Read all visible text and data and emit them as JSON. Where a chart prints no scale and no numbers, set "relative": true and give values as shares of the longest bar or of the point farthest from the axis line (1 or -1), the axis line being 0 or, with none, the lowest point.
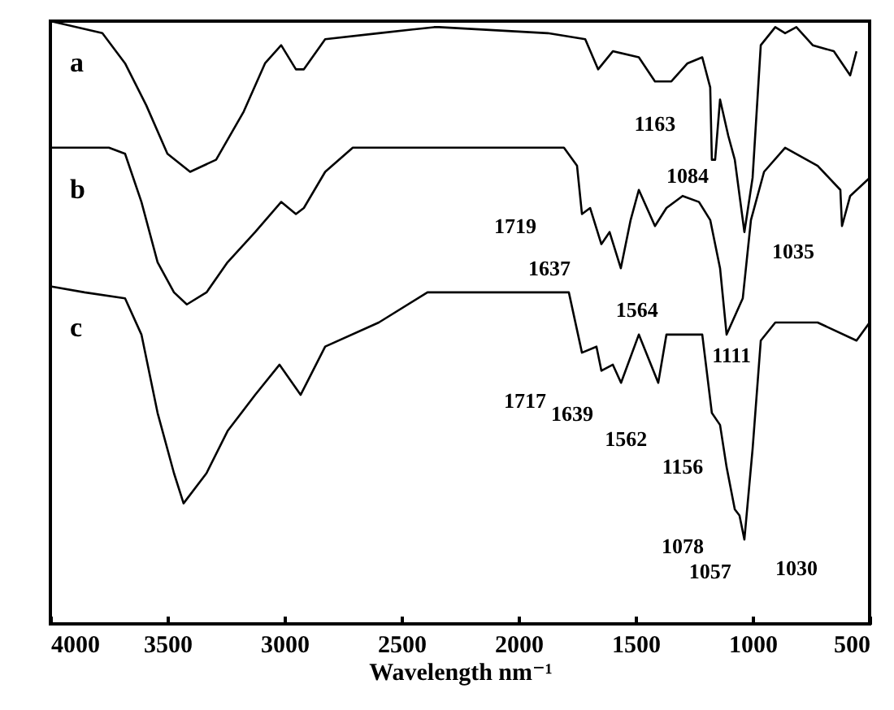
{
  "chart_data": {
    "type": "line",
    "xlabel": "Wavelength nm⁻¹",
    "xlim": [
      4000,
      500
    ],
    "xticks": [
      4000,
      3500,
      3000,
      2500,
      2000,
      1500,
      1000,
      500
    ],
    "relative": true,
    "tick_labels": "x",
    "marker": "none",
    "series": [
      {
        "name": "a",
        "color": "#000000",
        "x": [
          4000,
          3778,
          3681,
          3590,
          3500,
          3403,
          3292,
          3174,
          3083,
          3014,
          2951,
          2917,
          2826,
          2597,
          2361,
          2340,
          1875,
          1715,
          1660,
          1597,
          1486,
          1417,
          1347,
          1278,
          1215,
          1181,
          1174,
          1160,
          1139,
          1104,
          1076,
          1035,
          1000,
          965,
          903,
          861,
          813,
          743,
          653,
          583,
          556
        ],
        "values": [
          1.0,
          0.98,
          0.93,
          0.86,
          0.78,
          0.75,
          0.77,
          0.85,
          0.93,
          0.96,
          0.92,
          0.92,
          0.97,
          0.98,
          0.99,
          0.99,
          0.98,
          0.97,
          0.92,
          0.95,
          0.94,
          0.9,
          0.9,
          0.93,
          0.94,
          0.89,
          0.77,
          0.77,
          0.87,
          0.81,
          0.77,
          0.65,
          0.74,
          0.96,
          0.99,
          0.98,
          0.99,
          0.96,
          0.95,
          0.91,
          0.95
        ]
      },
      {
        "name": "b",
        "color": "#000000",
        "x": [
          4000,
          3750,
          3681,
          3611,
          3542,
          3472,
          3417,
          3333,
          3243,
          3125,
          3014,
          2951,
          2917,
          2826,
          2708,
          2361,
          2340,
          1806,
          1750,
          1729,
          1694,
          1646,
          1611,
          1563,
          1521,
          1486,
          1417,
          1368,
          1299,
          1229,
          1181,
          1139,
          1111,
          1042,
          1007,
          951,
          861,
          722,
          625,
          618,
          583,
          500
        ],
        "values": [
          0.79,
          0.79,
          0.78,
          0.7,
          0.6,
          0.55,
          0.53,
          0.55,
          0.6,
          0.65,
          0.7,
          0.68,
          0.69,
          0.75,
          0.79,
          0.79,
          0.79,
          0.79,
          0.76,
          0.68,
          0.69,
          0.63,
          0.65,
          0.59,
          0.67,
          0.72,
          0.66,
          0.69,
          0.71,
          0.7,
          0.67,
          0.59,
          0.48,
          0.54,
          0.67,
          0.75,
          0.79,
          0.76,
          0.72,
          0.66,
          0.71,
          0.74
        ]
      },
      {
        "name": "c",
        "color": "#000000",
        "x": [
          4000,
          3854,
          3681,
          3611,
          3542,
          3472,
          3431,
          3333,
          3243,
          3125,
          3021,
          2931,
          2826,
          2597,
          2389,
          2340,
          1785,
          1729,
          1667,
          1646,
          1597,
          1562,
          1486,
          1403,
          1368,
          1215,
          1174,
          1139,
          1111,
          1076,
          1056,
          1035,
          1000,
          965,
          903,
          722,
          556,
          500
        ],
        "values": [
          0.56,
          0.55,
          0.54,
          0.48,
          0.35,
          0.25,
          0.2,
          0.25,
          0.32,
          0.38,
          0.43,
          0.38,
          0.46,
          0.5,
          0.55,
          0.55,
          0.55,
          0.45,
          0.46,
          0.42,
          0.43,
          0.4,
          0.48,
          0.4,
          0.48,
          0.48,
          0.35,
          0.33,
          0.26,
          0.19,
          0.18,
          0.14,
          0.29,
          0.47,
          0.5,
          0.5,
          0.47,
          0.5
        ]
      }
    ],
    "annotations": [
      {
        "text": "1163",
        "x": 1174,
        "y": 0.77
      },
      {
        "text": "1084",
        "x": 1076,
        "y": 0.77
      },
      {
        "text": "1035",
        "x": 1035,
        "y": 0.65
      },
      {
        "text": "1719",
        "x": 1729,
        "y": 0.68
      },
      {
        "text": "1637",
        "x": 1646,
        "y": 0.63
      },
      {
        "text": "1564",
        "x": 1563,
        "y": 0.59
      },
      {
        "text": "1111",
        "x": 1111,
        "y": 0.48
      },
      {
        "text": "1717",
        "x": 1729,
        "y": 0.45
      },
      {
        "text": "1639",
        "x": 1646,
        "y": 0.42
      },
      {
        "text": "1562",
        "x": 1562,
        "y": 0.4
      },
      {
        "text": "1156",
        "x": 1139,
        "y": 0.33
      },
      {
        "text": "1078",
        "x": 1076,
        "y": 0.19
      },
      {
        "text": "1057",
        "x": 1056,
        "y": 0.18
      },
      {
        "text": "1030",
        "x": 1035,
        "y": 0.14
      }
    ]
  }
}
